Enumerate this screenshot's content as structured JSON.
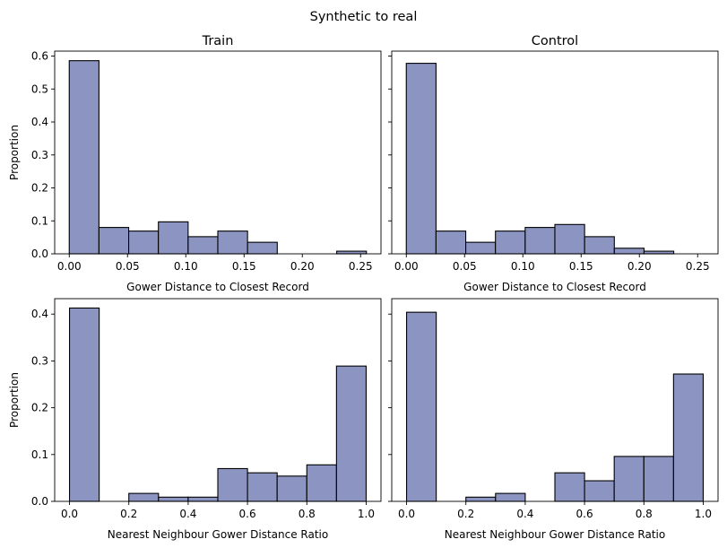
{
  "suptitle": "Synthetic to real",
  "colors": {
    "bar_fill": "#8c95c2",
    "bar_edge": "#000000"
  },
  "chart_data": [
    {
      "type": "bar",
      "subtype": "histogram",
      "title": "Train",
      "xlabel": "Gower Distance to Closest Record",
      "ylabel": "Proportion",
      "xlim": [
        -0.0125,
        0.2675
      ],
      "ylim": [
        0,
        0.615
      ],
      "xticks": [
        0.0,
        0.05,
        0.1,
        0.15,
        0.2,
        0.25
      ],
      "xtick_labels": [
        "0.00",
        "0.05",
        "0.10",
        "0.15",
        "0.20",
        "0.25"
      ],
      "yticks": [
        0.0,
        0.1,
        0.2,
        0.3,
        0.4,
        0.5,
        0.6
      ],
      "ytick_labels": [
        "0.0",
        "0.1",
        "0.2",
        "0.3",
        "0.4",
        "0.5",
        "0.6"
      ],
      "bin_edges": [
        0,
        0.0255,
        0.051,
        0.0765,
        0.102,
        0.1275,
        0.153,
        0.1785,
        0.204,
        0.2295,
        0.255
      ],
      "values": [
        0.586,
        0.08,
        0.069,
        0.097,
        0.052,
        0.069,
        0.035,
        0,
        0,
        0.008
      ],
      "grid": false
    },
    {
      "type": "bar",
      "subtype": "histogram",
      "title": "Control",
      "xlabel": "Gower Distance to Closest Record",
      "ylabel": "",
      "xlim": [
        -0.0125,
        0.2675
      ],
      "ylim": [
        0,
        0.615
      ],
      "xticks": [
        0.0,
        0.05,
        0.1,
        0.15,
        0.2,
        0.25
      ],
      "xtick_labels": [
        "0.00",
        "0.05",
        "0.10",
        "0.15",
        "0.20",
        "0.25"
      ],
      "yticks": [
        0.0,
        0.1,
        0.2,
        0.3,
        0.4,
        0.5,
        0.6
      ],
      "ytick_labels": [],
      "bin_edges": [
        0,
        0.0255,
        0.051,
        0.0765,
        0.102,
        0.1275,
        0.153,
        0.1785,
        0.204,
        0.2295,
        0.255
      ],
      "values": [
        0.578,
        0.069,
        0.035,
        0.069,
        0.08,
        0.089,
        0.052,
        0.017,
        0.008,
        0
      ],
      "grid": false
    },
    {
      "type": "bar",
      "subtype": "histogram",
      "title": "",
      "xlabel": "Nearest Neighbour Gower Distance Ratio",
      "ylabel": "Proportion",
      "xlim": [
        -0.05,
        1.05
      ],
      "ylim": [
        0,
        0.433
      ],
      "xticks": [
        0.0,
        0.2,
        0.4,
        0.6,
        0.8,
        1.0
      ],
      "xtick_labels": [
        "0.0",
        "0.2",
        "0.4",
        "0.6",
        "0.8",
        "1.0"
      ],
      "yticks": [
        0.0,
        0.1,
        0.2,
        0.3,
        0.4
      ],
      "ytick_labels": [
        "0.0",
        "0.1",
        "0.2",
        "0.3",
        "0.4"
      ],
      "bin_edges": [
        0,
        0.1,
        0.2,
        0.3,
        0.4,
        0.5,
        0.6,
        0.7,
        0.8,
        0.9,
        1.0
      ],
      "values": [
        0.413,
        0,
        0.017,
        0.009,
        0.009,
        0.07,
        0.061,
        0.054,
        0.078,
        0.289
      ],
      "grid": false
    },
    {
      "type": "bar",
      "subtype": "histogram",
      "title": "",
      "xlabel": "Nearest Neighbour Gower Distance Ratio",
      "ylabel": "",
      "xlim": [
        -0.05,
        1.05
      ],
      "ylim": [
        0,
        0.433
      ],
      "xticks": [
        0.0,
        0.2,
        0.4,
        0.6,
        0.8,
        1.0
      ],
      "xtick_labels": [
        "0.0",
        "0.2",
        "0.4",
        "0.6",
        "0.8",
        "1.0"
      ],
      "yticks": [
        0.0,
        0.1,
        0.2,
        0.3,
        0.4
      ],
      "ytick_labels": [],
      "bin_edges": [
        0,
        0.1,
        0.2,
        0.3,
        0.4,
        0.5,
        0.6,
        0.7,
        0.8,
        0.9,
        1.0
      ],
      "values": [
        0.404,
        0,
        0.009,
        0.017,
        0,
        0.061,
        0.044,
        0.096,
        0.096,
        0.272
      ],
      "grid": false
    }
  ]
}
